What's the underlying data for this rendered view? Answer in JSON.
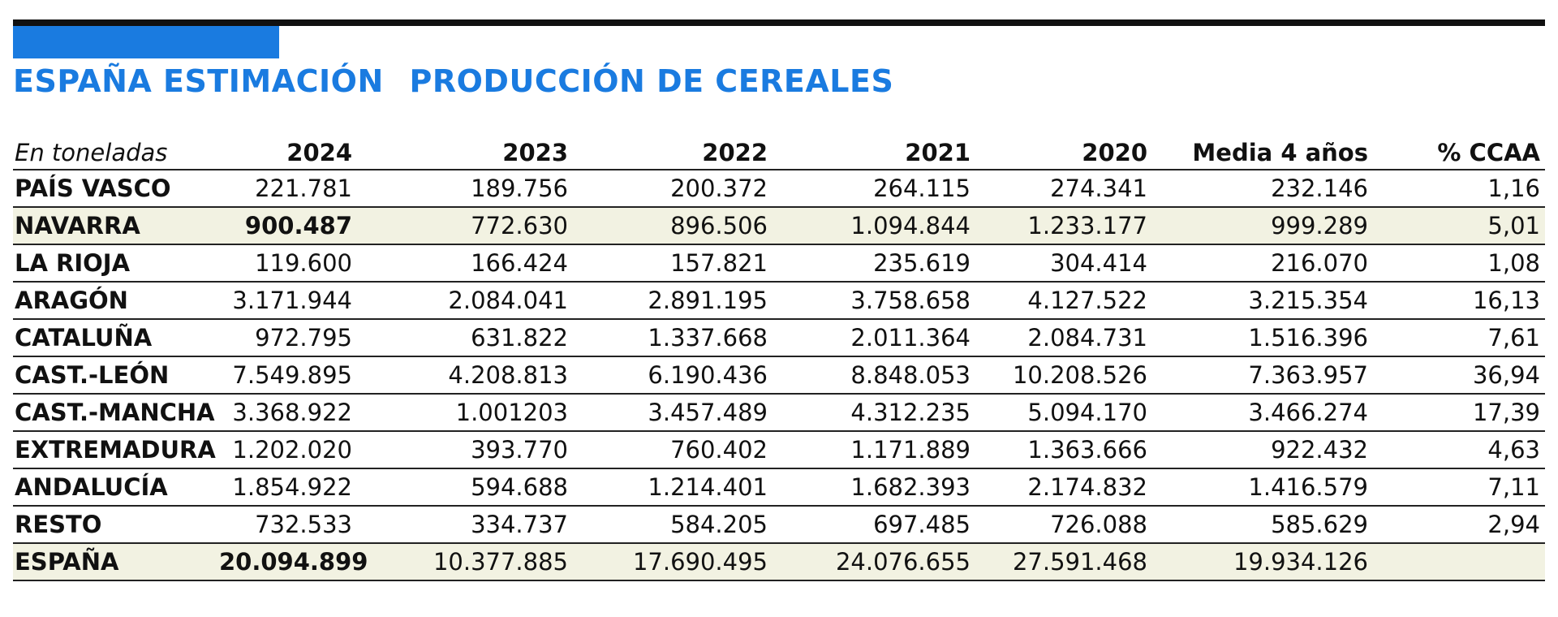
{
  "header": {
    "title_part1": "ESPAÑA ESTIMACIÓN",
    "title_part2": "PRODUCCIÓN DE CEREALES"
  },
  "colors": {
    "accent": "#1a7be0",
    "highlight_row": "#f2f2e2",
    "rule": "#111111"
  },
  "table": {
    "unit_label": "En toneladas",
    "columns": [
      "2024",
      "2023",
      "2022",
      "2021",
      "2020",
      "Media 4 años",
      "% CCAA"
    ],
    "rows": [
      {
        "region": "PAÍS VASCO",
        "values": [
          "221.781",
          "189.756",
          "200.372",
          "264.115",
          "274.341",
          "232.146",
          "1,16"
        ]
      },
      {
        "region": "NAVARRA",
        "values": [
          "900.487",
          "772.630",
          "896.506",
          "1.094.844",
          "1.233.177",
          "999.289",
          "5,01"
        ]
      },
      {
        "region": "LA RIOJA",
        "values": [
          "119.600",
          "166.424",
          "157.821",
          "235.619",
          "304.414",
          "216.070",
          "1,08"
        ]
      },
      {
        "region": "ARAGÓN",
        "values": [
          "3.171.944",
          "2.084.041",
          "2.891.195",
          "3.758.658",
          "4.127.522",
          "3.215.354",
          "16,13"
        ]
      },
      {
        "region": "CATALUÑA",
        "values": [
          "972.795",
          "631.822",
          "1.337.668",
          "2.011.364",
          "2.084.731",
          "1.516.396",
          "7,61"
        ]
      },
      {
        "region": "CAST.-LEÓN",
        "values": [
          "7.549.895",
          "4.208.813",
          "6.190.436",
          "8.848.053",
          "10.208.526",
          "7.363.957",
          "36,94"
        ]
      },
      {
        "region": "CAST.-MANCHA",
        "values": [
          "3.368.922",
          "1.001203",
          "3.457.489",
          "4.312.235",
          "5.094.170",
          "3.466.274",
          "17,39"
        ]
      },
      {
        "region": "EXTREMADURA",
        "values": [
          "1.202.020",
          "393.770",
          "760.402",
          "1.171.889",
          "1.363.666",
          "922.432",
          "4,63"
        ]
      },
      {
        "region": "ANDALUCÍA",
        "values": [
          "1.854.922",
          "594.688",
          "1.214.401",
          "1.682.393",
          "2.174.832",
          "1.416.579",
          "7,11"
        ]
      },
      {
        "region": "RESTO",
        "values": [
          "732.533",
          "334.737",
          "584.205",
          "697.485",
          "726.088",
          "585.629",
          "2,94"
        ]
      },
      {
        "region": "ESPAÑA",
        "values": [
          "20.094.899",
          "10.377.885",
          "17.690.495",
          "24.076.655",
          "27.591.468",
          "19.934.126",
          ""
        ]
      }
    ]
  }
}
